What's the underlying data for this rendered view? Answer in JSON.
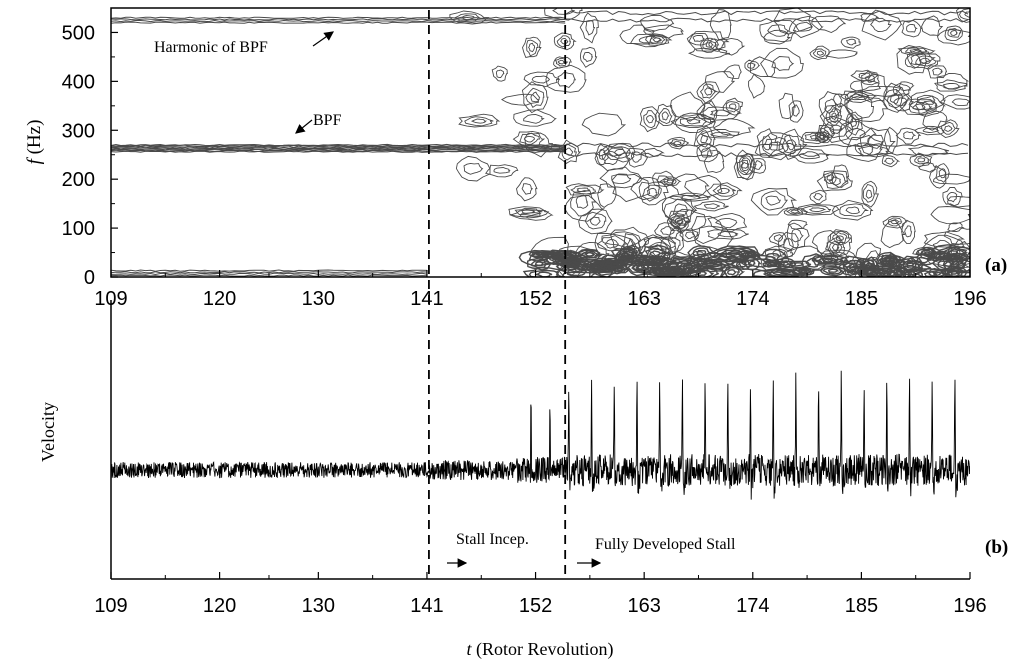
{
  "chart_data": [
    {
      "panel": "(a)",
      "type": "heatmap",
      "ylabel_italic": "f",
      "ylabel_rest": " (Hz)",
      "xlim": [
        109,
        196
      ],
      "ylim": [
        0,
        550
      ],
      "xticks": [
        109,
        120,
        130,
        141,
        152,
        163,
        174,
        185,
        196
      ],
      "yticks": [
        0,
        100,
        200,
        300,
        400,
        500
      ],
      "bands": [
        {
          "freq": 263,
          "x_end": 155,
          "label": "BPF"
        },
        {
          "freq": 525,
          "x_end": 155,
          "label": "Harmonic of BPF"
        },
        {
          "freq": 8,
          "x_end": 141,
          "label": ""
        }
      ],
      "annotations": [
        "Harmonic of BPF",
        "BPF"
      ],
      "vlines": [
        141.2,
        155
      ]
    },
    {
      "panel": "(b)",
      "type": "line",
      "ylabel": "Velocity",
      "xlabel_italic": "t",
      "xlabel_rest": " (Rotor Revolution)",
      "xlim": [
        109,
        196
      ],
      "xticks": [
        109,
        120,
        130,
        141,
        152,
        163,
        174,
        185,
        196
      ],
      "vlines": [
        141.2,
        155
      ],
      "phases": [
        {
          "label": "Stall Incep.",
          "start": 141.2
        },
        {
          "label": "Fully Developed Stall",
          "start": 155
        }
      ],
      "spikes_start": 155.3,
      "spike_period": 2.3,
      "spike_amplitude": 1.0
    }
  ]
}
